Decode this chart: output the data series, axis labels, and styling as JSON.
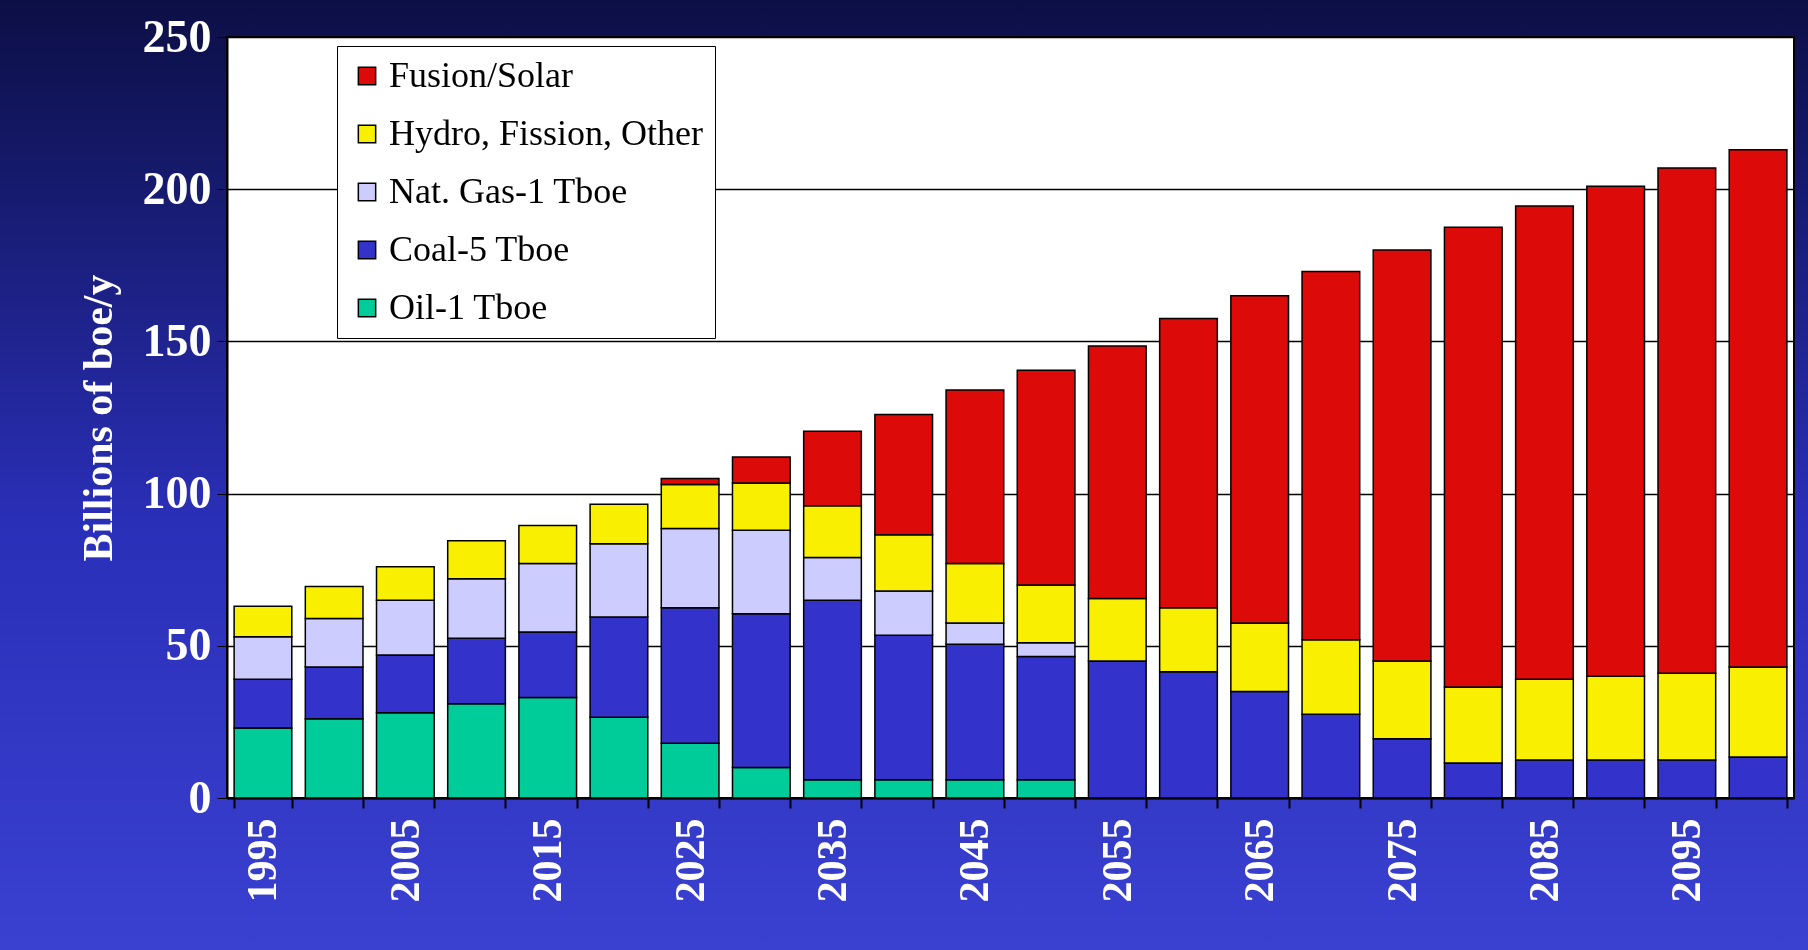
{
  "chart_data": {
    "type": "bar",
    "stacked": true,
    "ylabel": "Billions of boe/y",
    "categories": [
      "1995",
      null,
      "2005",
      null,
      "2015",
      null,
      "2025",
      null,
      "2035",
      null,
      "2045",
      null,
      "2055",
      null,
      "2065",
      null,
      "2075",
      null,
      "2085",
      null,
      "2095",
      null
    ],
    "series": [
      {
        "name": "Oil-1 Tboe",
        "color": "#00cc99",
        "values": [
          23,
          26,
          28,
          31,
          33,
          26.5,
          18,
          10,
          6,
          6,
          6,
          6,
          null,
          null,
          null,
          null,
          null,
          null,
          null,
          null,
          null,
          null
        ]
      },
      {
        "name": "Coal-5 Tboe",
        "color": "#3333cc",
        "values": [
          16,
          17,
          19,
          21.5,
          21.5,
          33,
          44.5,
          50.5,
          59,
          47.5,
          44.5,
          40.5,
          45,
          41.5,
          35,
          27.5,
          19.5,
          11.5,
          12.5,
          12.5,
          12.5,
          13.5
        ]
      },
      {
        "name": "Nat. Gas-1 Tboe",
        "color": "#ccccff",
        "values": [
          14,
          16,
          18,
          19.5,
          22.5,
          24,
          26,
          27.5,
          14,
          14.5,
          7,
          4.5,
          null,
          null,
          null,
          null,
          null,
          null,
          null,
          null,
          null,
          null
        ]
      },
      {
        "name": "Hydro, Fission, Other",
        "color": "#f8f000",
        "values": [
          10,
          10.5,
          11,
          12.5,
          12.5,
          13,
          14.5,
          15.5,
          17,
          18.5,
          19.5,
          19,
          20.5,
          21,
          22.5,
          24.5,
          25.5,
          25,
          26.5,
          27.5,
          28.5,
          29.5
        ]
      },
      {
        "name": "Fusion/Solar",
        "color": "#dd0a0a",
        "values": [
          null,
          null,
          null,
          null,
          null,
          null,
          2,
          8.5,
          24.5,
          39.5,
          57,
          70.5,
          83,
          95,
          107.5,
          121,
          135,
          151,
          155.5,
          161,
          166,
          170
        ]
      }
    ],
    "ylim": [
      0,
      250
    ],
    "yticks": [
      0,
      50,
      100,
      150,
      200,
      250
    ],
    "grid": "y",
    "legend": "top left"
  }
}
